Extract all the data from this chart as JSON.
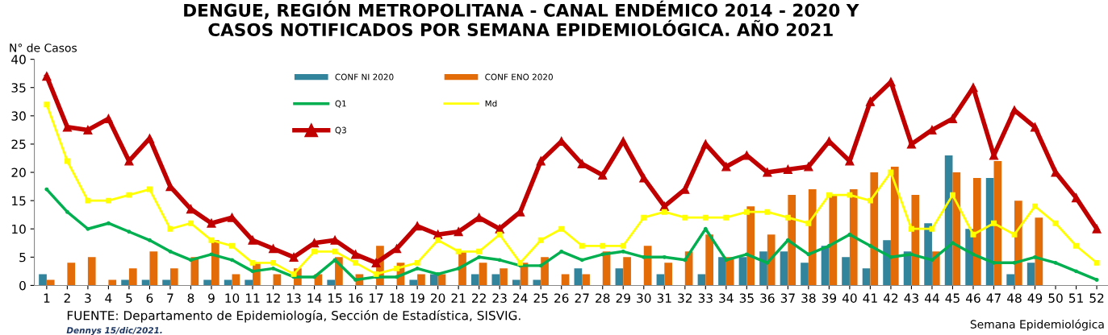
{
  "chart_data": {
    "type": "bar",
    "title": "DENGUE, REGIÓN METROPOLITANA - CANAL ENDÉMICO 2014 - 2020 Y\nCASOS NOTIFICADOS POR SEMANA EPIDEMIOLÓGICA. AÑO 2021",
    "ylabel": "N° de Casos",
    "xlabel": "Semana Epidemiológica",
    "annotations": [
      "FUENTE: Departamento de Epidemiología, Sección de Estadística, SISVIG.",
      "Dennys 15/dic/2021."
    ],
    "categories": [
      "1",
      "2",
      "3",
      "4",
      "5",
      "6",
      "7",
      "8",
      "9",
      "10",
      "11",
      "12",
      "13",
      "14",
      "15",
      "16",
      "17",
      "18",
      "19",
      "20",
      "21",
      "22",
      "23",
      "24",
      "25",
      "26",
      "27",
      "28",
      "29",
      "30",
      "31",
      "32",
      "33",
      "34",
      "35",
      "36",
      "37",
      "38",
      "39",
      "40",
      "41",
      "42",
      "43",
      "44",
      "45",
      "46",
      "47",
      "48",
      "49",
      "50",
      "51",
      "52"
    ],
    "ylim": [
      0,
      40
    ],
    "yticks": [
      0,
      5,
      10,
      15,
      20,
      25,
      30,
      35,
      40
    ],
    "grid": false,
    "legend": "top",
    "series": [
      {
        "name": "CONF NI 2020",
        "color": "#31849b",
        "values": [
          2,
          0,
          0,
          0,
          1,
          1,
          1,
          0,
          1,
          1,
          1,
          0,
          0,
          0,
          1,
          0,
          0,
          0,
          1,
          2,
          0,
          2,
          2,
          1,
          1,
          0,
          3,
          0,
          3,
          0,
          2,
          0,
          2,
          5,
          5,
          6,
          6,
          4,
          7,
          5,
          3,
          8,
          6,
          11,
          23,
          10,
          19,
          2,
          4,
          null,
          null,
          null
        ]
      },
      {
        "name": "Q1",
        "type": "line",
        "color": "#00b050",
        "marker": "circle",
        "values": [
          17,
          13,
          10,
          11,
          9.5,
          8,
          6,
          4.5,
          5.5,
          4.5,
          2.5,
          3,
          1.5,
          1.5,
          4.5,
          1,
          1.5,
          1.5,
          3,
          2,
          3,
          5,
          4.5,
          3.5,
          3.5,
          6,
          4.5,
          5.5,
          6,
          5,
          5,
          4.5,
          10,
          4.5,
          5.5,
          4,
          8,
          5.5,
          7,
          9,
          7,
          5,
          5.5,
          4.5,
          7.5,
          5.5,
          4,
          4,
          5,
          4,
          2.5,
          1
        ]
      },
      {
        "name": "Q3",
        "type": "line",
        "color": "#c00000",
        "marker": "triangle",
        "values": [
          37,
          28,
          27.5,
          29.5,
          22,
          26,
          17.5,
          13.5,
          11,
          12,
          8,
          6.5,
          5,
          7.5,
          8,
          5.5,
          4,
          6.5,
          10.5,
          9,
          9.5,
          12,
          10,
          13,
          22,
          25.5,
          21.5,
          19.5,
          25.5,
          19,
          14,
          17,
          25,
          21,
          23,
          20,
          20.5,
          21,
          25.5,
          22,
          32.5,
          36,
          25,
          27.5,
          29.5,
          35,
          23,
          31,
          28,
          20,
          15.5,
          10
        ]
      },
      {
        "name": "CONF ENO 2020",
        "color": "#e36c09",
        "values": [
          1,
          4,
          5,
          1,
          3,
          6,
          3,
          5,
          8,
          2,
          4,
          2,
          3,
          2,
          5,
          2,
          7,
          4,
          2,
          2,
          6,
          4,
          3,
          4,
          5,
          2,
          2,
          6,
          5,
          7,
          4,
          6,
          9,
          5,
          14,
          9,
          16,
          17,
          16,
          17,
          20,
          21,
          16,
          6,
          20,
          19,
          22,
          15,
          12,
          null,
          null,
          null
        ]
      },
      {
        "name": "Md",
        "type": "line",
        "color": "#ffff00",
        "marker": "square",
        "values": [
          32,
          22,
          15,
          15,
          16,
          17,
          10,
          11,
          8,
          7,
          4,
          4,
          2,
          6,
          6,
          4,
          2,
          3,
          4,
          8,
          6,
          6,
          9,
          4,
          8,
          10,
          7,
          7,
          7,
          12,
          13,
          12,
          12,
          12,
          13,
          13,
          12,
          11,
          16,
          16,
          15,
          20,
          10,
          10,
          16,
          9,
          11,
          9,
          14,
          11,
          7,
          4
        ]
      }
    ]
  }
}
